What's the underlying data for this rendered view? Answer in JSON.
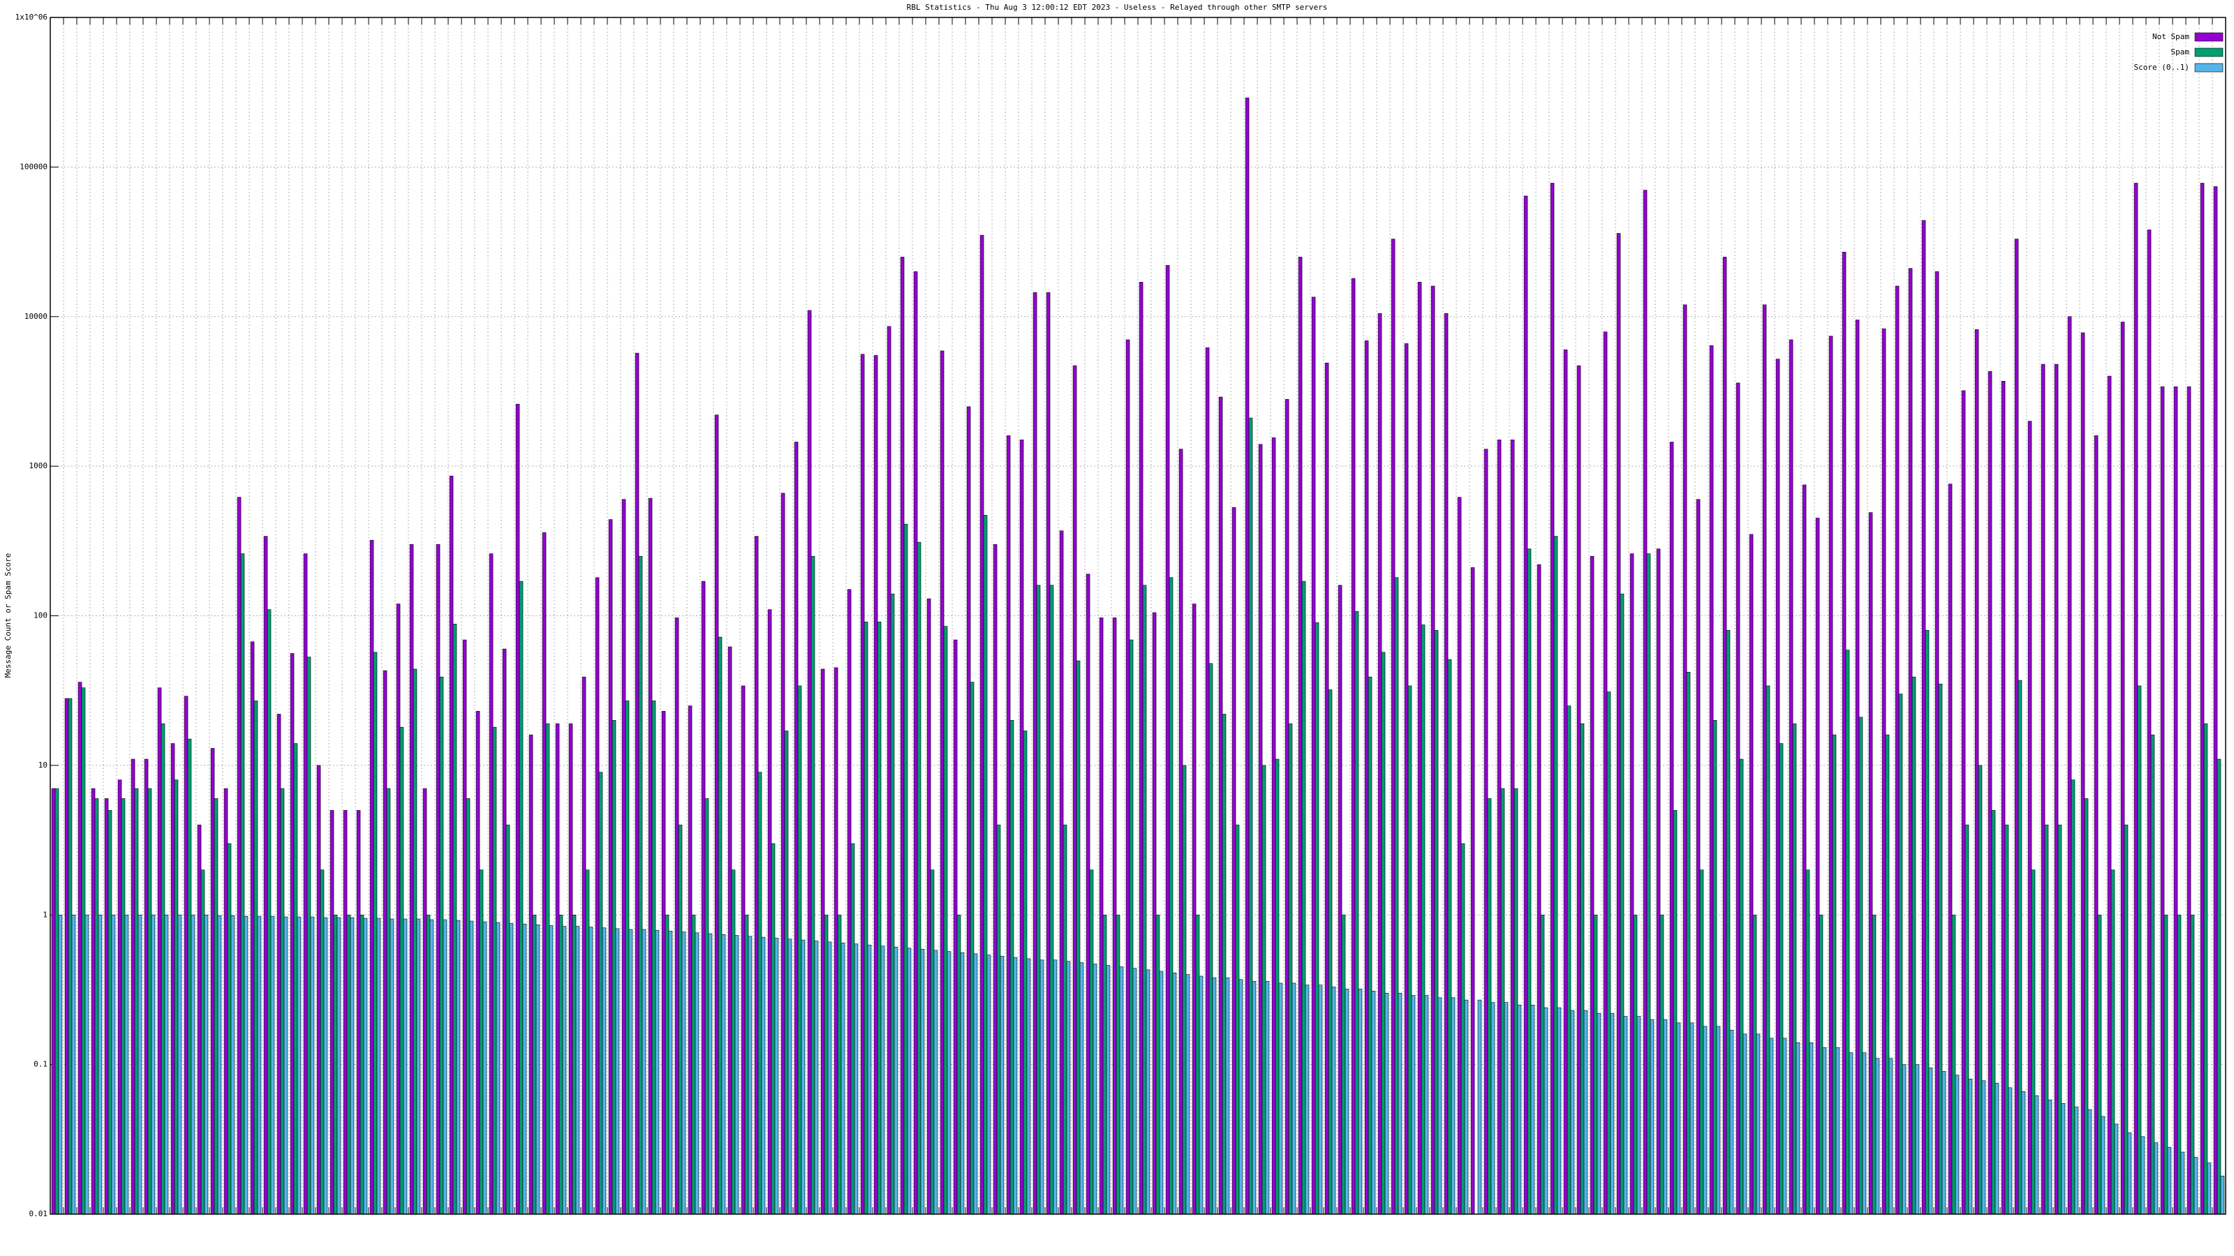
{
  "chart_data": {
    "type": "bar",
    "title": "RBL Statistics - Thu Aug  3 12:00:12 EDT 2023 - Useless - Relayed through other SMTP servers",
    "y_label": "Message Count or Spam Score",
    "log_y": true,
    "grid": true,
    "legend": "top-right",
    "ylim": [
      0.01,
      1000000
    ],
    "yticks": [
      0.01,
      0.1,
      1,
      10,
      100,
      1000,
      10000,
      100000,
      {
        "value": 1000000,
        "label": "1x10^06"
      }
    ],
    "categories": [
      null,
      null,
      null,
      null,
      null,
      null,
      null,
      null,
      null,
      null,
      null,
      null,
      null,
      null,
      null,
      null,
      null,
      null,
      null,
      null,
      null,
      null,
      null,
      null,
      null,
      null,
      null,
      null,
      null,
      null,
      null,
      null,
      null,
      null,
      null,
      null,
      null,
      null,
      null,
      null,
      null,
      null,
      null,
      null,
      null,
      null,
      null,
      null,
      null,
      null,
      null,
      null,
      null,
      null,
      null,
      null,
      null,
      null,
      null,
      null,
      null,
      null,
      null,
      null,
      null,
      null,
      null,
      null,
      null,
      null,
      null,
      null,
      null,
      null,
      null,
      null,
      null,
      null,
      null,
      null,
      null,
      null,
      null,
      null,
      null,
      null,
      null,
      null,
      null,
      null,
      null,
      null,
      null,
      null,
      null,
      null,
      null,
      null,
      null,
      null,
      null,
      null,
      null,
      null,
      null,
      null,
      null,
      null,
      null,
      null,
      null,
      null,
      null,
      null,
      null,
      null,
      null,
      null,
      null,
      null,
      null,
      null,
      null,
      null,
      null,
      null,
      null,
      null,
      null,
      null,
      null,
      null,
      null,
      null,
      null,
      null,
      null,
      null,
      null,
      null,
      null,
      null,
      null,
      null,
      null,
      null,
      null,
      null,
      null,
      null,
      null,
      null,
      null,
      null,
      null,
      null,
      null,
      null,
      null,
      null,
      null,
      null,
      null,
      null
    ],
    "series": [
      {
        "name": "Not Spam",
        "color": "#9400d3",
        "values": [
          7,
          28,
          36,
          7,
          6,
          8,
          11,
          11,
          33,
          14,
          29,
          4,
          13,
          7,
          620,
          67,
          340,
          22,
          56,
          260,
          10,
          5,
          5,
          5,
          320,
          43,
          120,
          300,
          7,
          300,
          860,
          69,
          23,
          260,
          60,
          2600,
          16,
          360,
          19,
          19,
          39,
          180,
          440,
          600,
          5700,
          610,
          23,
          97,
          25,
          170,
          2200,
          62,
          34,
          340,
          110,
          660,
          1450,
          11000,
          44,
          45,
          150,
          5600,
          5500,
          8600,
          25000,
          20000,
          130,
          5900,
          69,
          2500,
          35000,
          300,
          1600,
          1500,
          14500,
          14500,
          370,
          4700,
          190,
          97,
          97,
          7000,
          17000,
          105,
          22000,
          1300,
          120,
          6200,
          2900,
          530,
          290000,
          1400,
          1550,
          2800,
          25000,
          13500,
          4900,
          160,
          18000,
          6900,
          10500,
          33000,
          6600,
          17000,
          16000,
          10500,
          620,
          210,
          1300,
          1500,
          1500,
          64000,
          220,
          78000,
          6000,
          4700,
          250,
          7900,
          36000,
          260,
          70000,
          280,
          1450,
          12000,
          600,
          6400,
          25000,
          3600,
          350,
          12000,
          5200,
          7000,
          750,
          450,
          7400,
          27000,
          9500,
          490,
          8300,
          16000,
          21000,
          44000,
          20000,
          760,
          3200,
          8200,
          4300,
          3700,
          33000,
          2000,
          4800,
          4800,
          10000,
          7800,
          1600,
          4000,
          9200,
          78000,
          38000,
          3400,
          3400,
          3400,
          78000,
          74000
        ]
      },
      {
        "name": "Spam",
        "color": "#009e73",
        "values": [
          7,
          28,
          33,
          6,
          5,
          6,
          7,
          7,
          19,
          8,
          15,
          2,
          6,
          3,
          260,
          27,
          110,
          7,
          14,
          53,
          2,
          1,
          1,
          1,
          57,
          7,
          18,
          44,
          1,
          39,
          88,
          6,
          2,
          18,
          4,
          170,
          1,
          19,
          1,
          1,
          2,
          9,
          20,
          27,
          250,
          27,
          1,
          4,
          1,
          6,
          72,
          2,
          1,
          9,
          3,
          17,
          34,
          250,
          1,
          1,
          3,
          91,
          91,
          140,
          410,
          310,
          2,
          85,
          1,
          36,
          470,
          4,
          20,
          17,
          160,
          160,
          4,
          50,
          2,
          1,
          1,
          69,
          160,
          1,
          180,
          10,
          1,
          48,
          22,
          4,
          2100,
          10,
          11,
          19,
          170,
          90,
          32,
          1,
          107,
          39,
          57,
          180,
          34,
          87,
          80,
          51,
          3,
          null,
          6,
          7,
          7,
          280,
          1,
          340,
          25,
          19,
          1,
          31,
          140,
          1,
          260,
          1,
          5,
          42,
          2,
          20,
          80,
          11,
          1,
          34,
          14,
          19,
          2,
          1,
          16,
          59,
          21,
          1,
          16,
          30,
          39,
          80,
          35,
          1,
          4,
          10,
          5,
          4,
          37,
          2,
          4,
          4,
          8,
          6,
          1,
          2,
          4,
          34,
          16,
          1,
          1,
          1,
          19,
          11
        ]
      },
      {
        "name": "Score (0..1)",
        "color": "#56b4e9",
        "values": [
          1,
          1,
          1,
          1,
          1,
          1,
          1,
          1,
          1,
          1,
          1,
          1,
          0.99,
          0.99,
          0.98,
          0.98,
          0.98,
          0.97,
          0.97,
          0.97,
          0.96,
          0.96,
          0.96,
          0.95,
          0.95,
          0.94,
          0.94,
          0.94,
          0.93,
          0.93,
          0.92,
          0.91,
          0.9,
          0.89,
          0.88,
          0.87,
          0.86,
          0.85,
          0.84,
          0.84,
          0.83,
          0.82,
          0.81,
          0.8,
          0.8,
          0.79,
          0.78,
          0.77,
          0.76,
          0.75,
          0.74,
          0.73,
          0.72,
          0.71,
          0.7,
          0.69,
          0.68,
          0.67,
          0.66,
          0.65,
          0.64,
          0.63,
          0.62,
          0.61,
          0.6,
          0.59,
          0.58,
          0.57,
          0.56,
          0.55,
          0.54,
          0.53,
          0.52,
          0.51,
          0.5,
          0.5,
          0.49,
          0.48,
          0.47,
          0.46,
          0.45,
          0.44,
          0.43,
          0.42,
          0.41,
          0.4,
          0.39,
          0.38,
          0.38,
          0.37,
          0.36,
          0.36,
          0.35,
          0.35,
          0.34,
          0.34,
          0.33,
          0.32,
          0.32,
          0.31,
          0.3,
          0.3,
          0.29,
          0.29,
          0.28,
          0.28,
          0.27,
          0.27,
          0.26,
          0.26,
          0.25,
          0.25,
          0.24,
          0.24,
          0.23,
          0.23,
          0.22,
          0.22,
          0.21,
          0.21,
          0.2,
          0.2,
          0.19,
          0.19,
          0.18,
          0.18,
          0.17,
          0.16,
          0.16,
          0.15,
          0.15,
          0.14,
          0.14,
          0.13,
          0.13,
          0.12,
          0.12,
          0.11,
          0.11,
          0.1,
          0.1,
          0.095,
          0.09,
          0.085,
          0.08,
          0.078,
          0.075,
          0.07,
          0.066,
          0.062,
          0.058,
          0.055,
          0.052,
          0.05,
          0.045,
          0.04,
          0.035,
          0.033,
          0.03,
          0.028,
          0.026,
          0.024,
          0.022,
          0.018
        ]
      }
    ]
  }
}
